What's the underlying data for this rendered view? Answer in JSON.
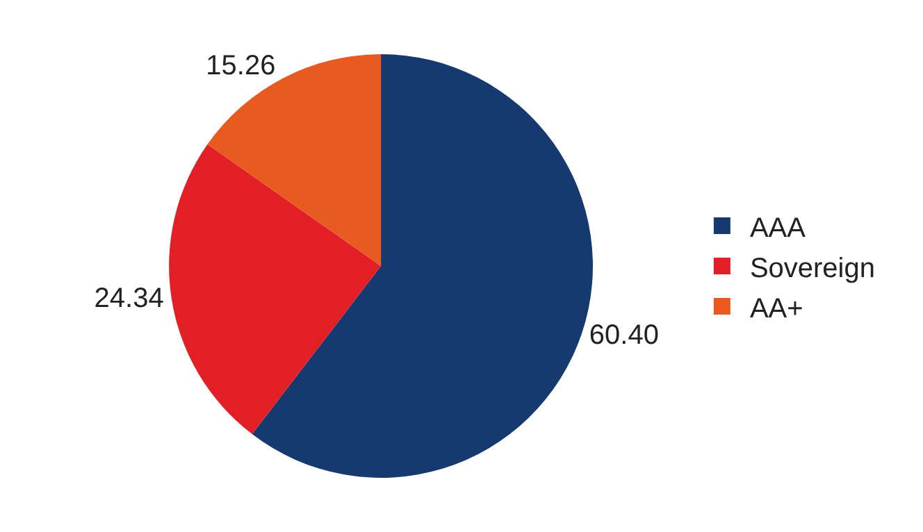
{
  "chart_data": {
    "type": "pie",
    "categories": [
      "AAA",
      "Sovereign",
      "AA+"
    ],
    "values": [
      60.4,
      24.34,
      15.26
    ],
    "value_labels": [
      "60.40",
      "24.34",
      "15.26"
    ],
    "colors": [
      "#163a70",
      "#e21f26",
      "#e95a21"
    ],
    "legend": "right"
  }
}
